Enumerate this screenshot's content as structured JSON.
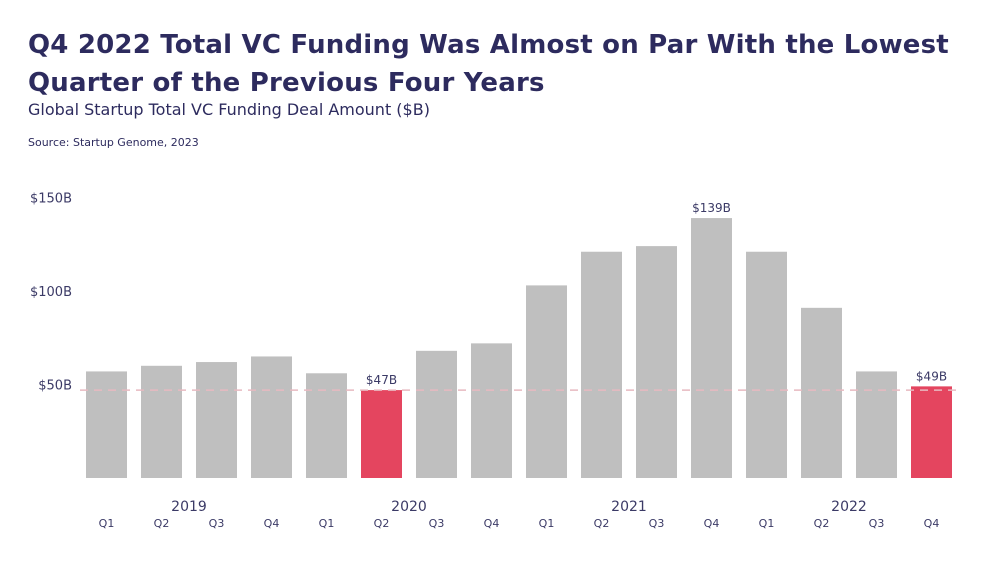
{
  "header": {
    "title": "Q4 2022 Total VC Funding Was Almost on Par With the Lowest Quarter of the Previous Four Years",
    "subtitle": "Global Startup Total VC Funding Deal Amount ($B)",
    "source": "Source: Startup Genome, 2023"
  },
  "colors": {
    "bar": "#bfbfbf",
    "highlight": "#e4455f",
    "reference_line": "#e8b9c0",
    "text": "#2d2b5e"
  },
  "chart_data": {
    "type": "bar",
    "title": "Q4 2022 Total VC Funding Was Almost on Par With the Lowest Quarter of the Previous Four Years",
    "subtitle": "Global Startup Total VC Funding Deal Amount ($B)",
    "xlabel": "",
    "ylabel": "",
    "ylim": [
      0,
      150
    ],
    "yticks": [
      50,
      100,
      150
    ],
    "ytick_labels": [
      "$50B",
      "$100B",
      "$150B"
    ],
    "years": [
      "2019",
      "2020",
      "2021",
      "2022"
    ],
    "categories": [
      "Q1",
      "Q2",
      "Q3",
      "Q4",
      "Q1",
      "Q2",
      "Q3",
      "Q4",
      "Q1",
      "Q2",
      "Q3",
      "Q4",
      "Q1",
      "Q2",
      "Q3",
      "Q4"
    ],
    "values": [
      57,
      60,
      62,
      65,
      56,
      47,
      68,
      72,
      103,
      121,
      124,
      139,
      121,
      91,
      57,
      49
    ],
    "highlighted": [
      5,
      15
    ],
    "data_labels": [
      {
        "index": 5,
        "text": "$47B"
      },
      {
        "index": 11,
        "text": "$139B"
      },
      {
        "index": 15,
        "text": "$49B"
      }
    ],
    "reference_line": {
      "value": 47,
      "style": "dashed"
    },
    "grid": false,
    "legend": "none"
  }
}
